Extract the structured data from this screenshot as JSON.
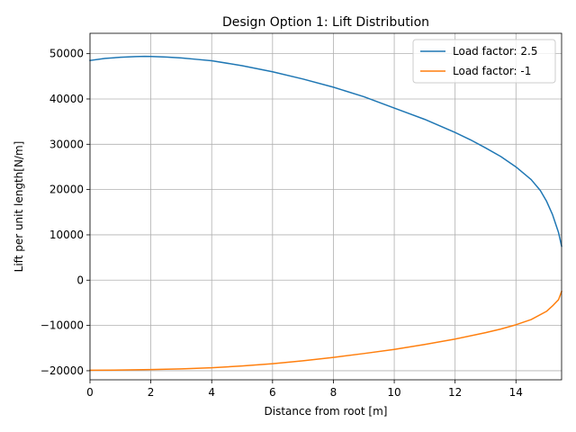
{
  "chart_data": {
    "type": "line",
    "title": "Design Option 1: Lift Distribution",
    "xlabel": "Distance from root [m]",
    "ylabel": "Lift per unit length[N/m]",
    "xlim": [
      0,
      15.5
    ],
    "ylim": [
      -22000,
      54500
    ],
    "xticks": [
      0,
      2,
      4,
      6,
      8,
      10,
      12,
      14
    ],
    "xtick_labels": [
      "0",
      "2",
      "4",
      "6",
      "8",
      "10",
      "12",
      "14"
    ],
    "yticks": [
      -20000,
      -10000,
      0,
      10000,
      20000,
      30000,
      40000,
      50000
    ],
    "ytick_labels": [
      "−20000",
      "−10000",
      "0",
      "10000",
      "20000",
      "30000",
      "40000",
      "50000"
    ],
    "grid": true,
    "legend_position": "top-right",
    "series": [
      {
        "name": "Load factor: 2.5",
        "color": "#1f77b4",
        "x": [
          0,
          0.5,
          1,
          1.5,
          1.8,
          2,
          2.5,
          3,
          3.5,
          4,
          5,
          6,
          7,
          8,
          9,
          10,
          11,
          12,
          12.5,
          13,
          13.5,
          14,
          14.5,
          14.8,
          15,
          15.2,
          15.3,
          15.4,
          15.5
        ],
        "y": [
          48500,
          48950,
          49200,
          49350,
          49400,
          49380,
          49250,
          49050,
          48750,
          48450,
          47350,
          46000,
          44400,
          42600,
          40500,
          38000,
          35500,
          32600,
          31000,
          29200,
          27300,
          25000,
          22200,
          19800,
          17500,
          14500,
          12500,
          10500,
          7500
        ]
      },
      {
        "name": "Load factor: -1",
        "color": "#ff7f0e",
        "x": [
          0,
          1,
          2,
          3,
          4,
          5,
          6,
          7,
          8,
          9,
          10,
          11,
          12,
          13,
          13.5,
          14,
          14.5,
          15,
          15.2,
          15.4,
          15.5
        ],
        "y": [
          -19900,
          -19850,
          -19750,
          -19600,
          -19350,
          -18950,
          -18450,
          -17800,
          -17050,
          -16200,
          -15300,
          -14200,
          -13000,
          -11600,
          -10800,
          -9850,
          -8700,
          -6900,
          -5700,
          -4300,
          -2500
        ]
      }
    ]
  }
}
